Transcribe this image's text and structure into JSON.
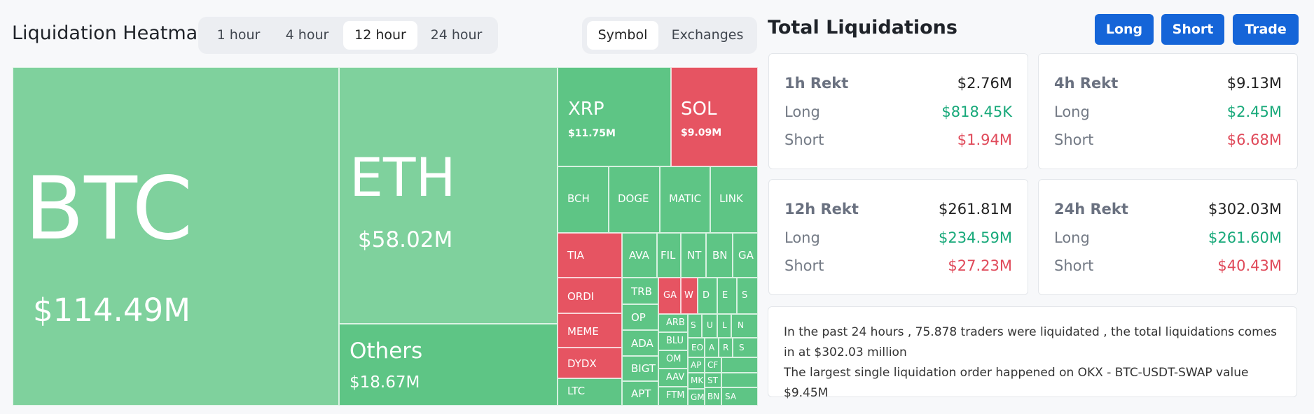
{
  "heatmap": {
    "title": "Liquidation Heatmap",
    "time_tabs": [
      "1 hour",
      "4 hour",
      "12 hour",
      "24 hour"
    ],
    "active_time_tab": "12 hour",
    "group_tabs": [
      "Symbol",
      "Exchanges"
    ],
    "active_group_tab": "Symbol",
    "tiles": {
      "btc": {
        "symbol": "BTC",
        "value": "$114.49M"
      },
      "eth": {
        "symbol": "ETH",
        "value": "$58.02M"
      },
      "others": {
        "symbol": "Others",
        "value": "$18.67M"
      },
      "xrp": {
        "symbol": "XRP",
        "value": "$11.75M"
      },
      "sol": {
        "symbol": "SOL",
        "value": "$9.09M"
      },
      "bch": "BCH",
      "doge": "DOGE",
      "matic": "MATIC",
      "link": "LINK",
      "tia": "TIA",
      "ordi": "ORDI",
      "meme": "MEME",
      "dydx": "DYDX",
      "ltc": "LTC",
      "ava": "AVA",
      "fil": "FIL",
      "nt": "NT",
      "bn": "BN",
      "ga": "GA",
      "trb": "TRB",
      "op": "OP",
      "ada": "ADA",
      "bigt": "BIGT",
      "apt": "APT",
      "ga2": "GA",
      "w": "W",
      "d": "D",
      "e": "E",
      "s": "S",
      "arb": "ARB",
      "blu": "BLU",
      "omg": "OM",
      "aav": "AAV",
      "ftm": "FTM",
      "s2": "S",
      "u": "U",
      "l": "L",
      "n": "N",
      "eo": "EO",
      "a": "A",
      "r": "R",
      "s3": "S",
      "ap": "AP",
      "mk": "MK",
      "gm": "GM",
      "cf": "CF",
      "st": "ST",
      "bn2": "BN",
      "sa": "SA"
    }
  },
  "totals": {
    "title": "Total Liquidations",
    "buttons": [
      "Long",
      "Short",
      "Trade"
    ],
    "cards": [
      {
        "label": "1h Rekt",
        "total": "$2.76M",
        "long_label": "Long",
        "long": "$818.45K",
        "short_label": "Short",
        "short": "$1.94M"
      },
      {
        "label": "4h Rekt",
        "total": "$9.13M",
        "long_label": "Long",
        "long": "$2.45M",
        "short_label": "Short",
        "short": "$6.68M"
      },
      {
        "label": "12h Rekt",
        "total": "$261.81M",
        "long_label": "Long",
        "long": "$234.59M",
        "short_label": "Short",
        "short": "$27.23M"
      },
      {
        "label": "24h Rekt",
        "total": "$302.03M",
        "long_label": "Long",
        "long": "$261.60M",
        "short_label": "Short",
        "short": "$40.43M"
      }
    ],
    "summary_line1": "In the past 24 hours , 75.878 traders were liquidated , the total liquidations comes in at $302.03 million",
    "summary_line2": "The largest single liquidation order happened on OKX - BTC-USDT-SWAP value $9.45M"
  },
  "colors": {
    "long_green": "#18a97a",
    "short_red": "#e04a5a",
    "accent_blue": "#1565d8",
    "tile_green": "#5ec585",
    "tile_light_green": "#7fd19d",
    "tile_red": "#e65462"
  }
}
